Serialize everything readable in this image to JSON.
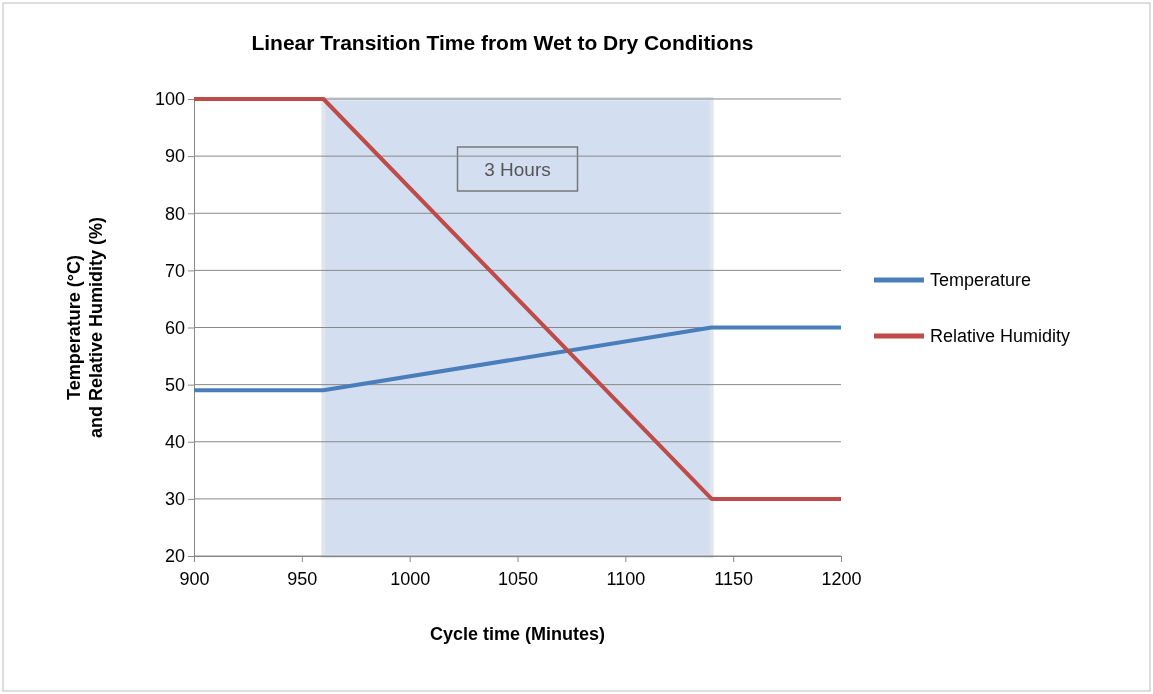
{
  "chart_data": {
    "type": "line",
    "title": "Linear Transition Time from Wet to Dry Conditions",
    "xlabel": "Cycle time (Minutes)",
    "ylabel": "Temperature (°C) and Relative Humidity (%)",
    "x": [
      900,
      960,
      1140,
      1200
    ],
    "series": [
      {
        "name": "Temperature",
        "color": "#4a7ebb",
        "values": [
          49,
          49,
          60,
          60
        ]
      },
      {
        "name": "Relative Humidity",
        "color": "#be4b48",
        "values": [
          100,
          100,
          30,
          30
        ]
      }
    ],
    "xlim": [
      900,
      1200
    ],
    "xticks": [
      900,
      950,
      1000,
      1050,
      1100,
      1150,
      1200
    ],
    "ylim": [
      20,
      100
    ],
    "yticks": [
      20,
      30,
      40,
      50,
      60,
      70,
      80,
      90,
      100
    ],
    "bands": [
      {
        "axis": "x",
        "from": 960,
        "to": 1140,
        "label": "3 Hours",
        "color": "#d3dff0"
      }
    ],
    "grid": "y",
    "legend": "right",
    "marker": "none",
    "line_style": "solid"
  }
}
